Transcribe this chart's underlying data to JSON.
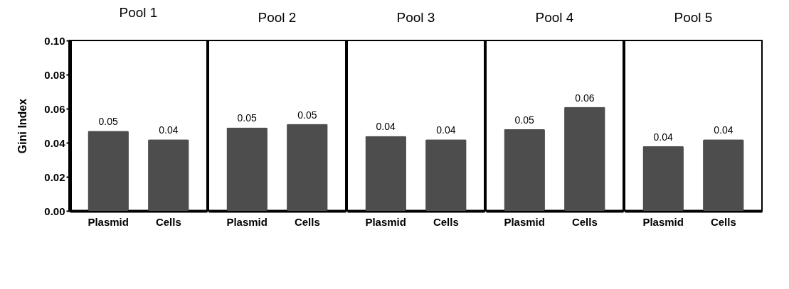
{
  "chart_data": [
    {
      "type": "bar",
      "title": "Pool 1",
      "ylabel": "Gini Index",
      "categories": [
        "Plasmid",
        "Cells"
      ],
      "values": [
        0.047,
        0.042
      ],
      "value_labels": [
        "0.05",
        "0.04"
      ],
      "color": "#4d4d4d",
      "ylim": [
        0,
        0.1
      ],
      "yticks": [
        {
          "value": 0,
          "label": "0.00"
        },
        {
          "value": 0.02,
          "label": "0.02"
        },
        {
          "value": 0.04,
          "label": "0.04"
        },
        {
          "value": 0.06,
          "label": "0.06"
        },
        {
          "value": 0.08,
          "label": "0.08"
        },
        {
          "value": 0.1,
          "label": "0.10"
        }
      ]
    },
    {
      "type": "bar",
      "title": "Pool 2",
      "categories": [
        "Plasmid",
        "Cells"
      ],
      "values": [
        0.049,
        0.051
      ],
      "value_labels": [
        "0.05",
        "0.05"
      ],
      "color": "#4d4d4d",
      "ylim": [
        0,
        0.1
      ],
      "tick_labels": "x"
    },
    {
      "type": "bar",
      "title": "Pool 3",
      "categories": [
        "Plasmid",
        "Cells"
      ],
      "values": [
        0.044,
        0.042
      ],
      "value_labels": [
        "0.04",
        "0.04"
      ],
      "color": "#4d4d4d",
      "ylim": [
        0,
        0.1
      ],
      "tick_labels": "x"
    },
    {
      "type": "bar",
      "title": "Pool 4",
      "categories": [
        "Plasmid",
        "Cells"
      ],
      "values": [
        0.048,
        0.061
      ],
      "value_labels": [
        "0.05",
        "0.06"
      ],
      "color": "#4d4d4d",
      "ylim": [
        0,
        0.1
      ],
      "tick_labels": "x"
    },
    {
      "type": "bar",
      "title": "Pool 5",
      "categories": [
        "Plasmid",
        "Cells"
      ],
      "values": [
        0.038,
        0.042
      ],
      "value_labels": [
        "0.04",
        "0.04"
      ],
      "color": "#4d4d4d",
      "ylim": [
        0,
        0.1
      ],
      "tick_labels": "x"
    }
  ]
}
